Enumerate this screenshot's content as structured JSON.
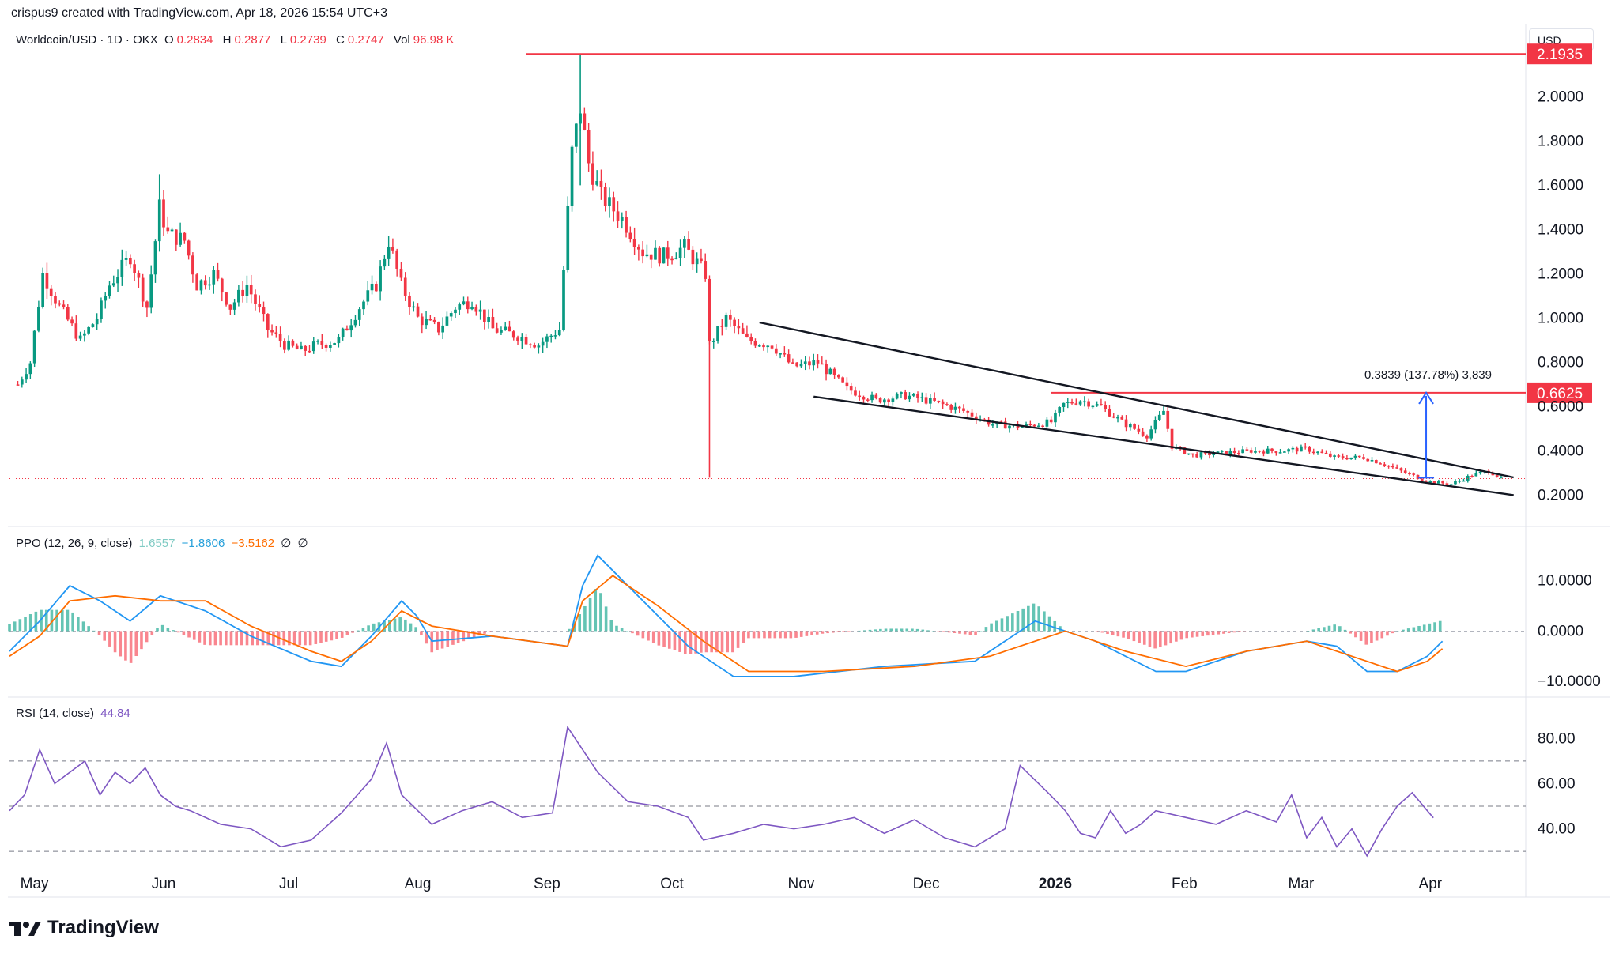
{
  "header": {
    "credit": "crispus9 created with TradingView.com, Apr 18, 2026 15:54 UTC+3"
  },
  "brand": {
    "name": "TradingView"
  },
  "chart_data": [
    {
      "type": "candlestick",
      "symbol_line": "Worldcoin/USD · 1D · OKX",
      "ohlc": {
        "o_label": "O",
        "o": "0.2834",
        "h_label": "H",
        "h": "0.2877",
        "l_label": "L",
        "l": "0.2739",
        "c_label": "C",
        "c": "0.2747",
        "vol_label": "Vol",
        "vol": "96.98 K"
      },
      "currency": "USD",
      "ylim": [
        0.08,
        2.33
      ],
      "y_ticks": [
        "0.2000",
        "0.4000",
        "0.6000",
        "0.8000",
        "1.0000",
        "1.2000",
        "1.4000",
        "1.6000",
        "1.8000",
        "2.0000"
      ],
      "x_ticks": [
        "May",
        "Jun",
        "Jul",
        "Aug",
        "Sep",
        "Oct",
        "Nov",
        "Dec",
        "2026",
        "Feb",
        "Mar",
        "Apr"
      ],
      "levels": [
        {
          "label": "2.1935",
          "value": 2.1935,
          "color": "#f23645"
        },
        {
          "label": "0.6625",
          "value": 0.6625,
          "color": "#f23645"
        }
      ],
      "measure_label": "0.3839 (137.78%) 3,839",
      "measure_from": 0.2786,
      "measure_to": 0.6625,
      "key_close_path": [
        [
          "Apr 27",
          0.7
        ],
        [
          "Apr 30",
          0.8
        ],
        [
          "May 3",
          1.2
        ],
        [
          "May 7",
          1.05
        ],
        [
          "May 12",
          0.9
        ],
        [
          "May 16",
          1.0
        ],
        [
          "May 19",
          1.15
        ],
        [
          "May 24",
          1.28
        ],
        [
          "May 28",
          1.05
        ],
        [
          "May 31",
          1.5
        ],
        [
          "Jun 2",
          1.38
        ],
        [
          "Jun 6",
          1.35
        ],
        [
          "Jun 9",
          1.15
        ],
        [
          "Jun 13",
          1.2
        ],
        [
          "Jun 17",
          1.05
        ],
        [
          "Jun 21",
          1.15
        ],
        [
          "Jun 26",
          0.95
        ],
        [
          "Jun 30",
          0.88
        ],
        [
          "Jul 4",
          0.85
        ],
        [
          "Jul 8",
          0.88
        ],
        [
          "Jul 13",
          0.9
        ],
        [
          "Jul 18",
          1.05
        ],
        [
          "Jul 22",
          1.15
        ],
        [
          "Jul 25",
          1.35
        ],
        [
          "Jul 28",
          1.15
        ],
        [
          "Aug 1",
          1.0
        ],
        [
          "Aug 6",
          0.95
        ],
        [
          "Aug 10",
          1.05
        ],
        [
          "Aug 14",
          1.08
        ],
        [
          "Aug 19",
          0.95
        ],
        [
          "Aug 25",
          0.92
        ],
        [
          "Aug 30",
          0.88
        ],
        [
          "Sep 4",
          0.95
        ],
        [
          "Sep 7",
          1.75
        ],
        [
          "Sep 9",
          1.95
        ],
        [
          "Sep 11",
          1.7
        ],
        [
          "Sep 14",
          1.55
        ],
        [
          "Sep 19",
          1.45
        ],
        [
          "Sep 24",
          1.3
        ],
        [
          "Sep 29",
          1.28
        ],
        [
          "Oct 4",
          1.32
        ],
        [
          "Oct 9",
          1.2
        ],
        [
          "Oct 10",
          0.88
        ],
        [
          "Oct 14",
          1.0
        ],
        [
          "Oct 19",
          0.9
        ],
        [
          "Oct 25",
          0.88
        ],
        [
          "Oct 30",
          0.78
        ],
        [
          "Nov 5",
          0.8
        ],
        [
          "Nov 12",
          0.68
        ],
        [
          "Nov 19",
          0.63
        ],
        [
          "Nov 26",
          0.65
        ],
        [
          "Dec 3",
          0.62
        ],
        [
          "Dec 10",
          0.58
        ],
        [
          "Dec 17",
          0.52
        ],
        [
          "Dec 24",
          0.51
        ],
        [
          "Dec 31",
          0.53
        ],
        [
          "Jan 3",
          0.61
        ],
        [
          "Jan 7",
          0.63
        ],
        [
          "Jan 12",
          0.6
        ],
        [
          "Jan 17",
          0.53
        ],
        [
          "Jan 23",
          0.47
        ],
        [
          "Jan 27",
          0.58
        ],
        [
          "Jan 29",
          0.42
        ],
        [
          "Feb 3",
          0.38
        ],
        [
          "Feb 10",
          0.39
        ],
        [
          "Feb 17",
          0.4
        ],
        [
          "Feb 24",
          0.4
        ],
        [
          "Mar 2",
          0.41
        ],
        [
          "Mar 9",
          0.37
        ],
        [
          "Mar 16",
          0.37
        ],
        [
          "Mar 21",
          0.34
        ],
        [
          "Mar 26",
          0.3
        ],
        [
          "Apr 1",
          0.26
        ],
        [
          "Apr 6",
          0.25
        ],
        [
          "Apr 11",
          0.29
        ],
        [
          "Apr 15",
          0.31
        ],
        [
          "Apr 18",
          0.2747
        ]
      ]
    },
    {
      "type": "line",
      "indicator": "PPO",
      "params": "(12, 26, 9, close)",
      "values": [
        "1.6557",
        "−1.8606",
        "−3.5162"
      ],
      "markers": [
        "∅",
        "∅"
      ],
      "y_ticks": [
        "10.0000",
        "0.0000",
        "−10.0000"
      ],
      "ylim": [
        -12,
        17
      ],
      "series": [
        {
          "color": "#2196f3",
          "points": [
            [
              0,
              -4
            ],
            [
              0.02,
              2
            ],
            [
              0.04,
              9
            ],
            [
              0.06,
              6
            ],
            [
              0.08,
              2
            ],
            [
              0.1,
              7
            ],
            [
              0.13,
              4
            ],
            [
              0.16,
              -1
            ],
            [
              0.2,
              -6
            ],
            [
              0.22,
              -7
            ],
            [
              0.24,
              -1
            ],
            [
              0.26,
              6
            ],
            [
              0.27,
              3
            ],
            [
              0.28,
              -2
            ],
            [
              0.32,
              -1
            ],
            [
              0.37,
              -3
            ],
            [
              0.38,
              9
            ],
            [
              0.39,
              15
            ],
            [
              0.42,
              6
            ],
            [
              0.45,
              -3
            ],
            [
              0.48,
              -9
            ],
            [
              0.52,
              -9
            ],
            [
              0.58,
              -7
            ],
            [
              0.64,
              -6
            ],
            [
              0.68,
              2
            ],
            [
              0.72,
              -2
            ],
            [
              0.76,
              -8
            ],
            [
              0.78,
              -8
            ],
            [
              0.82,
              -4
            ],
            [
              0.86,
              -2
            ],
            [
              0.88,
              -3
            ],
            [
              0.9,
              -8
            ],
            [
              0.92,
              -8
            ],
            [
              0.94,
              -5
            ],
            [
              0.95,
              -2
            ]
          ]
        },
        {
          "color": "#ff6d00",
          "points": [
            [
              0,
              -5
            ],
            [
              0.02,
              -1
            ],
            [
              0.04,
              6
            ],
            [
              0.07,
              7
            ],
            [
              0.1,
              6
            ],
            [
              0.13,
              6
            ],
            [
              0.16,
              1
            ],
            [
              0.2,
              -4
            ],
            [
              0.22,
              -6
            ],
            [
              0.24,
              -2
            ],
            [
              0.26,
              4
            ],
            [
              0.28,
              1
            ],
            [
              0.32,
              -1
            ],
            [
              0.37,
              -3
            ],
            [
              0.38,
              6
            ],
            [
              0.4,
              11
            ],
            [
              0.43,
              5
            ],
            [
              0.46,
              -2
            ],
            [
              0.49,
              -8
            ],
            [
              0.54,
              -8
            ],
            [
              0.6,
              -7
            ],
            [
              0.65,
              -5
            ],
            [
              0.7,
              0
            ],
            [
              0.74,
              -4
            ],
            [
              0.78,
              -7
            ],
            [
              0.82,
              -4
            ],
            [
              0.86,
              -2
            ],
            [
              0.9,
              -6
            ],
            [
              0.92,
              -8
            ],
            [
              0.94,
              -6
            ],
            [
              0.95,
              -3.5
            ]
          ]
        }
      ]
    },
    {
      "type": "line",
      "indicator": "RSI",
      "params": "(14, close)",
      "value": "44.84",
      "y_ticks": [
        "80.00",
        "60.00",
        "40.00"
      ],
      "ylim": [
        22,
        92
      ],
      "upper_band": 70,
      "middle_band": 50,
      "lower_band": 30,
      "series": [
        {
          "color": "#7e57c2",
          "points": [
            [
              0,
              48
            ],
            [
              0.01,
              55
            ],
            [
              0.02,
              75
            ],
            [
              0.03,
              60
            ],
            [
              0.05,
              70
            ],
            [
              0.06,
              55
            ],
            [
              0.07,
              65
            ],
            [
              0.08,
              60
            ],
            [
              0.09,
              67
            ],
            [
              0.1,
              55
            ],
            [
              0.11,
              50
            ],
            [
              0.12,
              48
            ],
            [
              0.14,
              42
            ],
            [
              0.16,
              40
            ],
            [
              0.18,
              32
            ],
            [
              0.2,
              35
            ],
            [
              0.22,
              47
            ],
            [
              0.24,
              62
            ],
            [
              0.25,
              78
            ],
            [
              0.26,
              55
            ],
            [
              0.28,
              42
            ],
            [
              0.3,
              48
            ],
            [
              0.32,
              52
            ],
            [
              0.34,
              45
            ],
            [
              0.36,
              47
            ],
            [
              0.37,
              85
            ],
            [
              0.39,
              65
            ],
            [
              0.41,
              52
            ],
            [
              0.43,
              50
            ],
            [
              0.45,
              45
            ],
            [
              0.46,
              35
            ],
            [
              0.48,
              38
            ],
            [
              0.5,
              42
            ],
            [
              0.52,
              40
            ],
            [
              0.54,
              42
            ],
            [
              0.56,
              45
            ],
            [
              0.58,
              38
            ],
            [
              0.6,
              44
            ],
            [
              0.62,
              36
            ],
            [
              0.64,
              32
            ],
            [
              0.66,
              40
            ],
            [
              0.67,
              68
            ],
            [
              0.69,
              55
            ],
            [
              0.7,
              48
            ],
            [
              0.71,
              38
            ],
            [
              0.72,
              36
            ],
            [
              0.73,
              48
            ],
            [
              0.74,
              38
            ],
            [
              0.75,
              42
            ],
            [
              0.76,
              48
            ],
            [
              0.78,
              45
            ],
            [
              0.8,
              42
            ],
            [
              0.82,
              48
            ],
            [
              0.84,
              43
            ],
            [
              0.85,
              55
            ],
            [
              0.86,
              36
            ],
            [
              0.87,
              45
            ],
            [
              0.88,
              32
            ],
            [
              0.89,
              40
            ],
            [
              0.9,
              28
            ],
            [
              0.91,
              40
            ],
            [
              0.92,
              50
            ],
            [
              0.93,
              56
            ],
            [
              0.94,
              48
            ],
            [
              0.944,
              44.84
            ]
          ]
        }
      ]
    }
  ]
}
